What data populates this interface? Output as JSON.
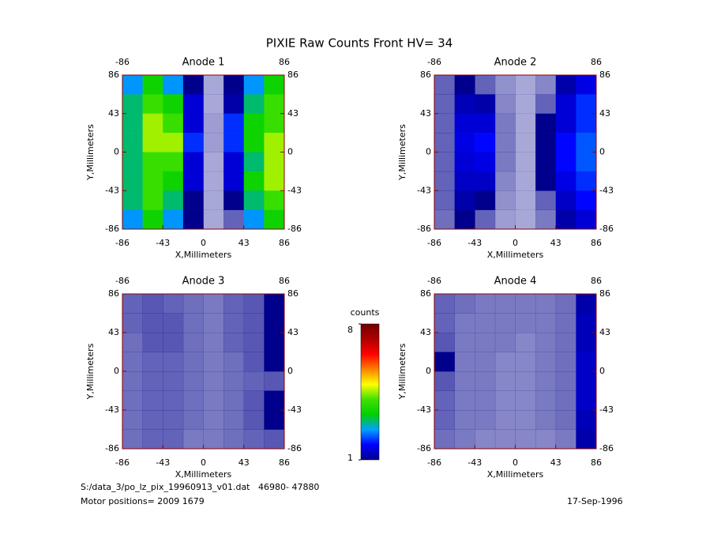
{
  "title": "PIXIE Raw Counts Front HV= 34",
  "chart_data": [
    {
      "type": "heatmap",
      "title": "Anode 1",
      "xlabel": "X,Millimeters",
      "ylabel": "Y,Millimeters",
      "xlim": [
        -86,
        86
      ],
      "ylim": [
        -86,
        86
      ],
      "xticks": [
        -86,
        -43,
        0,
        43,
        86
      ],
      "x2ticks": [
        -86,
        86
      ],
      "yticks": [
        -86,
        -43,
        0,
        43,
        86
      ],
      "z": [
        [
          2.5,
          3.5,
          2.5,
          1,
          0.2,
          1,
          2.5,
          3.5
        ],
        [
          3,
          4,
          3.5,
          1.5,
          0.2,
          1.2,
          3,
          4
        ],
        [
          3,
          4.5,
          4,
          1.5,
          0.3,
          2,
          3.5,
          4
        ],
        [
          3,
          4.5,
          4.5,
          2,
          0.3,
          2,
          3.5,
          4.5
        ],
        [
          3,
          4,
          4,
          1.5,
          0.2,
          1.5,
          3,
          4.5
        ],
        [
          3,
          4,
          3.5,
          1.5,
          0.2,
          1.5,
          3.5,
          4.5
        ],
        [
          3,
          4,
          3,
          1,
          0.2,
          1,
          3,
          4
        ],
        [
          2.5,
          3.5,
          2.5,
          1,
          0.2,
          0.8,
          2.5,
          3.5
        ]
      ]
    },
    {
      "type": "heatmap",
      "title": "Anode 2",
      "xlabel": "X,Millimeters",
      "ylabel": "Y,Millimeters",
      "xlim": [
        -86,
        86
      ],
      "ylim": [
        -86,
        86
      ],
      "xticks": [
        -86,
        -43,
        0,
        43,
        86
      ],
      "x2ticks": [
        -86,
        86
      ],
      "yticks": [
        -86,
        -43,
        0,
        43,
        86
      ],
      "z": [
        [
          0.8,
          1,
          0.8,
          0.4,
          0.2,
          0.5,
          1.2,
          1.6
        ],
        [
          0.8,
          1.3,
          1.2,
          0.5,
          0.2,
          0.8,
          1.5,
          2
        ],
        [
          0.8,
          1.5,
          1.5,
          0.6,
          0.2,
          1,
          1.5,
          2
        ],
        [
          0.8,
          1.6,
          1.8,
          0.6,
          0.2,
          1,
          1.8,
          2.2
        ],
        [
          0.8,
          1.5,
          1.6,
          0.6,
          0.2,
          1,
          1.8,
          2.2
        ],
        [
          0.8,
          1.4,
          1.4,
          0.5,
          0.2,
          1,
          1.6,
          2
        ],
        [
          0.8,
          1.2,
          1,
          0.4,
          0.2,
          0.8,
          1.4,
          1.8
        ],
        [
          0.7,
          1,
          0.8,
          0.3,
          0.2,
          0.6,
          1.2,
          1.5
        ]
      ]
    },
    {
      "type": "heatmap",
      "title": "Anode 3",
      "xlabel": "X,Millimeters",
      "ylabel": "Y,Millimeters",
      "xlim": [
        -86,
        86
      ],
      "ylim": [
        -86,
        86
      ],
      "xticks": [
        -86,
        -43,
        0,
        43,
        86
      ],
      "x2ticks": [
        -86,
        86
      ],
      "yticks": [
        -86,
        -43,
        0,
        43,
        86
      ],
      "z": [
        [
          0.8,
          0.9,
          0.8,
          0.7,
          0.6,
          0.8,
          0.9,
          1
        ],
        [
          0.8,
          0.9,
          0.9,
          0.7,
          0.6,
          0.8,
          0.9,
          1
        ],
        [
          0.7,
          0.9,
          0.9,
          0.7,
          0.6,
          0.8,
          0.9,
          1
        ],
        [
          0.7,
          0.8,
          0.8,
          0.7,
          0.6,
          0.7,
          0.9,
          1
        ],
        [
          0.7,
          0.8,
          0.8,
          0.7,
          0.6,
          0.7,
          0.8,
          0.9
        ],
        [
          0.7,
          0.8,
          0.8,
          0.7,
          0.6,
          0.7,
          0.9,
          1
        ],
        [
          0.7,
          0.8,
          0.8,
          0.7,
          0.6,
          0.7,
          0.9,
          1
        ],
        [
          0.7,
          0.8,
          0.8,
          0.6,
          0.6,
          0.7,
          0.8,
          0.9
        ]
      ]
    },
    {
      "type": "heatmap",
      "title": "Anode 4",
      "xlabel": "X,Millimeters",
      "ylabel": "Y,Millimeters",
      "xlim": [
        -86,
        86
      ],
      "ylim": [
        -86,
        86
      ],
      "xticks": [
        -86,
        -43,
        0,
        43,
        86
      ],
      "x2ticks": [
        -86,
        86
      ],
      "yticks": [
        -86,
        -43,
        0,
        43,
        86
      ],
      "z": [
        [
          0.8,
          0.7,
          0.6,
          0.6,
          0.6,
          0.6,
          0.7,
          1.2
        ],
        [
          0.8,
          0.6,
          0.6,
          0.6,
          0.6,
          0.6,
          0.7,
          1.3
        ],
        [
          0.9,
          0.6,
          0.6,
          0.6,
          0.5,
          0.6,
          0.7,
          1.3
        ],
        [
          1,
          0.6,
          0.6,
          0.5,
          0.5,
          0.6,
          0.7,
          1.4
        ],
        [
          0.9,
          0.6,
          0.6,
          0.5,
          0.5,
          0.6,
          0.7,
          1.4
        ],
        [
          0.8,
          0.6,
          0.6,
          0.5,
          0.5,
          0.6,
          0.7,
          1.4
        ],
        [
          0.8,
          0.6,
          0.6,
          0.5,
          0.5,
          0.6,
          0.7,
          1.3
        ],
        [
          0.7,
          0.6,
          0.5,
          0.5,
          0.5,
          0.5,
          0.6,
          1.2
        ]
      ]
    }
  ],
  "colorbar": {
    "label": "counts",
    "zlim": [
      1,
      8
    ],
    "ticks": [
      1,
      8
    ],
    "colors": [
      "#00008c",
      "#0000ff",
      "#00a0ff",
      "#00d000",
      "#40e000",
      "#ffff00",
      "#ff8000",
      "#ff0000",
      "#b00000",
      "#700000"
    ]
  },
  "footer": {
    "file": "S:/data_3/po_lz_pix_19960913_v01.dat   46980- 47880",
    "motor": "Motor positions= 2009 1679",
    "date": "17-Sep-1996"
  }
}
